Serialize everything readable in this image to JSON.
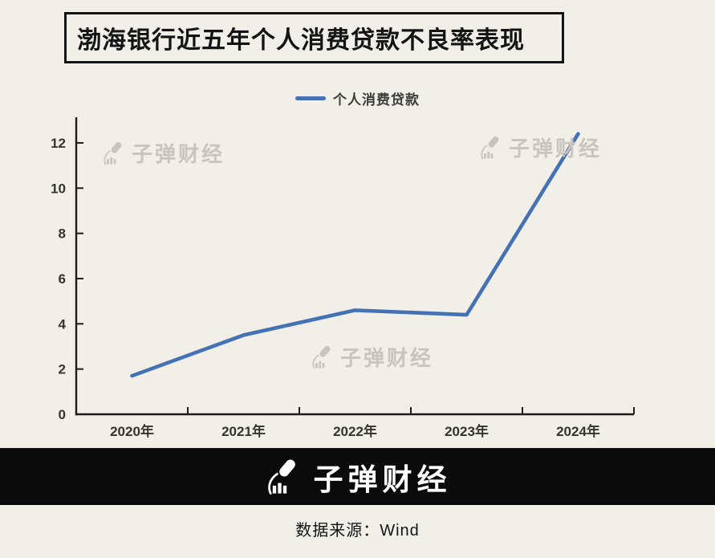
{
  "page": {
    "background_color": "#f1efe8",
    "accent_blue": "#4472b4",
    "watermark_color": "#c8c5bd",
    "footer_bar_color": "#0b0b0b"
  },
  "title": {
    "text": "渤海银行近五年个人消费贷款不良率表现"
  },
  "legend": {
    "label": "个人消费贷款",
    "color": "#4472b4"
  },
  "chart_data": {
    "type": "line",
    "title": "渤海银行近五年个人消费贷款不良率表现",
    "categories": [
      "2020年",
      "2021年",
      "2022年",
      "2023年",
      "2024年"
    ],
    "series": [
      {
        "name": "个人消费贷款",
        "values": [
          1.7,
          3.5,
          4.6,
          4.4,
          12.4
        ],
        "color": "#4472b4"
      }
    ],
    "xlabel": "",
    "ylabel": "",
    "ylim": [
      0,
      13.1
    ],
    "yticks": [
      0,
      2,
      4,
      6,
      8,
      10,
      12
    ],
    "grid": false,
    "legend_position": "top-center",
    "unit": "%"
  },
  "watermark": {
    "text": "子弹财经",
    "icon": "bullet-rocket-icon"
  },
  "footer": {
    "logo_text": "子弹财经",
    "logo_icon": "bullet-rocket-logo-icon",
    "source_text": "数据来源：Wind"
  }
}
